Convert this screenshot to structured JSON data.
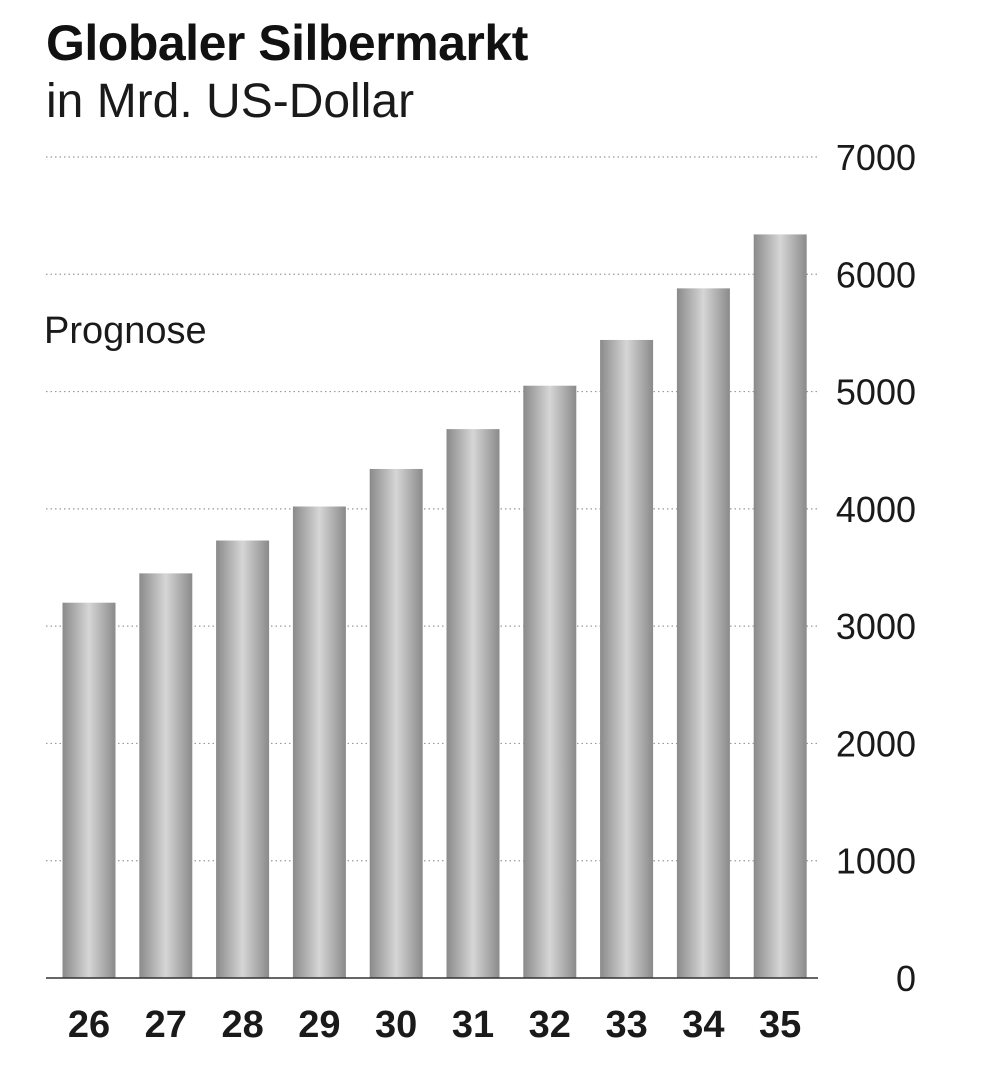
{
  "chart_data": {
    "type": "bar",
    "title": "Globaler Silbermarkt",
    "subtitle": "in Mrd. US-Dollar",
    "annotation": "Prognose",
    "categories": [
      "26",
      "27",
      "28",
      "29",
      "30",
      "31",
      "32",
      "33",
      "34",
      "35"
    ],
    "values": [
      3200,
      3450,
      3730,
      4020,
      4340,
      4680,
      5050,
      5440,
      5880,
      6340
    ],
    "ylim": [
      0,
      7000
    ],
    "yticks": [
      "0",
      "1000",
      "2000",
      "3000",
      "4000",
      "5000",
      "6000",
      "7000"
    ],
    "ytick_values": [
      0,
      1000,
      2000,
      3000,
      4000,
      5000,
      6000,
      7000
    ],
    "xlabel": "",
    "ylabel": "",
    "y_axis_side": "right",
    "grid": true,
    "bar_color": "#8a8a8a",
    "bar_highlight_color": "#d6d6d6",
    "gridline_color": "#9a9a9a"
  }
}
